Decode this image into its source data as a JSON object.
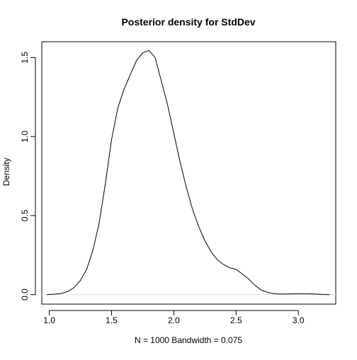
{
  "chart_data": {
    "type": "line",
    "title": "Posterior density for StdDev",
    "xlabel": "N = 1000   Bandwidth = 0.075",
    "ylabel": "Density",
    "xlim": [
      0.94,
      3.3
    ],
    "ylim": [
      -0.06,
      1.6
    ],
    "x_ticks": [
      1.0,
      1.5,
      2.0,
      2.5,
      3.0
    ],
    "x_tick_labels": [
      "1.0",
      "1.5",
      "2.0",
      "2.5",
      "3.0"
    ],
    "y_ticks": [
      0.0,
      0.5,
      1.0,
      1.5
    ],
    "y_tick_labels": [
      "0.0",
      "0.5",
      "1.0",
      "1.5"
    ],
    "grid": false,
    "baseline_y": 0,
    "series": [
      {
        "color": "#000000",
        "x": [
          0.98,
          1.05,
          1.1,
          1.15,
          1.2,
          1.25,
          1.3,
          1.35,
          1.4,
          1.45,
          1.5,
          1.55,
          1.6,
          1.65,
          1.7,
          1.75,
          1.8,
          1.85,
          1.9,
          1.95,
          2.0,
          2.05,
          2.1,
          2.15,
          2.2,
          2.25,
          2.3,
          2.35,
          2.4,
          2.45,
          2.5,
          2.55,
          2.6,
          2.65,
          2.7,
          2.75,
          2.8,
          2.85,
          2.9,
          2.95,
          3.0,
          3.05,
          3.1,
          3.15,
          3.2,
          3.25
        ],
        "y": [
          0.0,
          0.003,
          0.008,
          0.02,
          0.045,
          0.09,
          0.16,
          0.28,
          0.45,
          0.7,
          0.98,
          1.18,
          1.3,
          1.39,
          1.48,
          1.53,
          1.545,
          1.5,
          1.35,
          1.2,
          1.02,
          0.84,
          0.68,
          0.54,
          0.43,
          0.34,
          0.27,
          0.22,
          0.19,
          0.17,
          0.16,
          0.13,
          0.1,
          0.06,
          0.03,
          0.015,
          0.007,
          0.004,
          0.004,
          0.005,
          0.006,
          0.006,
          0.005,
          0.003,
          0.001,
          0.0
        ]
      }
    ]
  }
}
